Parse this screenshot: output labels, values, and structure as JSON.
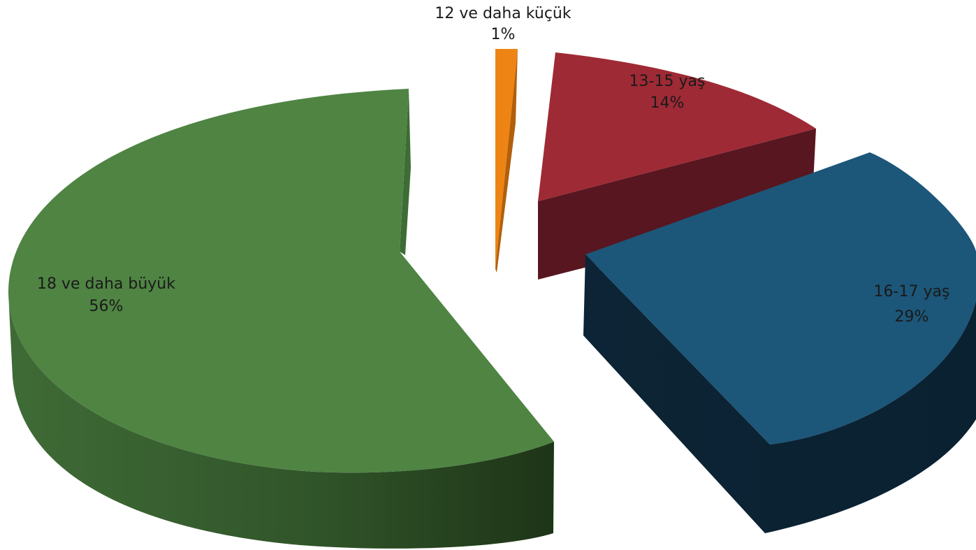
{
  "chart_data": {
    "type": "pie",
    "style": "3d-exploded",
    "legend": "none",
    "slices": [
      {
        "label": "12 ve daha küçük",
        "value": 1,
        "value_label": "1%",
        "color": "#ED8413"
      },
      {
        "label": "13-15 yaş",
        "value": 14,
        "value_label": "14%",
        "color": "#9E2A35"
      },
      {
        "label": "16-17 yaş",
        "value": 29,
        "value_label": "29%",
        "color": "#1C5679"
      },
      {
        "label": "18 ve daha büyük",
        "value": 56,
        "value_label": "56%",
        "color": "#4F8443"
      }
    ]
  }
}
